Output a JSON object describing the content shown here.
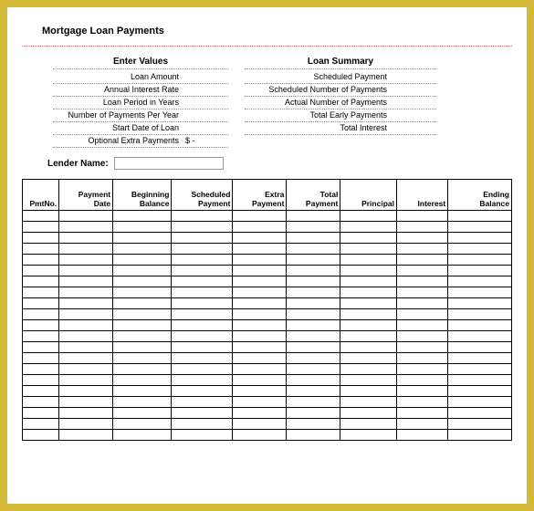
{
  "title": "Mortgage Loan Payments",
  "enter_values": {
    "header": "Enter Values",
    "rows": [
      {
        "label": "Loan Amount",
        "value": ""
      },
      {
        "label": "Annual Interest Rate",
        "value": ""
      },
      {
        "label": "Loan Period in Years",
        "value": ""
      },
      {
        "label": "Number of Payments Per Year",
        "value": ""
      },
      {
        "label": "Start Date of Loan",
        "value": ""
      },
      {
        "label": "Optional Extra Payments",
        "value": "$        -"
      }
    ]
  },
  "loan_summary": {
    "header": "Loan Summary",
    "rows": [
      {
        "label": "Scheduled Payment",
        "value": ""
      },
      {
        "label": "Scheduled Number of Payments",
        "value": ""
      },
      {
        "label": "Actual Number of Payments",
        "value": ""
      },
      {
        "label": "Total Early Payments",
        "value": ""
      },
      {
        "label": "Total Interest",
        "value": ""
      }
    ]
  },
  "lender_label": "Lender Name:",
  "lender_value": "",
  "table": {
    "columns": [
      "PmtNo.",
      "Payment Date",
      "Beginning Balance",
      "Scheduled Payment",
      "Extra Payment",
      "Total Payment",
      "Principal",
      "Interest",
      "Ending Balance"
    ],
    "row_count": 21
  },
  "colors": {
    "frame": "#d4b936",
    "dotted": "#c77",
    "grid_border": "#000000",
    "background": "#ffffff"
  }
}
